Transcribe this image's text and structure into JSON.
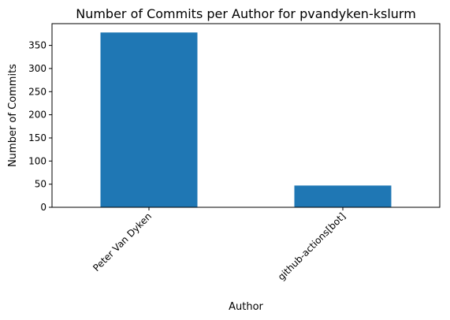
{
  "chart_data": {
    "type": "bar",
    "title": "Number of Commits per Author for pvandyken-kslurm",
    "xlabel": "Author",
    "ylabel": "Number of Commits",
    "categories": [
      "Peter Van Dyken",
      "github-actions[bot]"
    ],
    "values": [
      378,
      47
    ],
    "ylim": [
      0,
      397
    ],
    "yticks": [
      0,
      50,
      100,
      150,
      200,
      250,
      300,
      350
    ],
    "bar_color": "#1f77b4",
    "grid": false,
    "legend": false
  }
}
